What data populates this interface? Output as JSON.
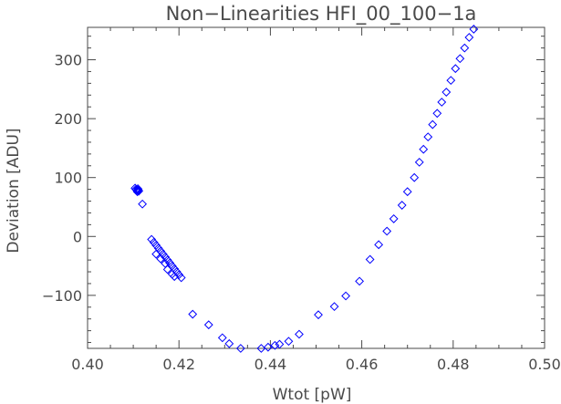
{
  "chart_data": {
    "type": "scatter",
    "title": "Non−Linearities HFI_00_100−1a",
    "xlabel": "Wtot [pW]",
    "ylabel": "Deviation [ADU]",
    "xlim": [
      0.4,
      0.5
    ],
    "ylim": [
      -190,
      355
    ],
    "xticks": [
      0.4,
      0.42,
      0.44,
      0.46,
      0.48,
      0.5
    ],
    "xtick_labels": [
      "0.40",
      "0.42",
      "0.44",
      "0.46",
      "0.48",
      "0.50"
    ],
    "yticks": [
      -100,
      0,
      100,
      200,
      300
    ],
    "ytick_labels": [
      "−100",
      "0",
      "100",
      "200",
      "300"
    ],
    "grid": false,
    "marker": "diamond-open",
    "color": "#0000ff",
    "series": [
      {
        "points": [
          [
            0.4104,
            82
          ],
          [
            0.4106,
            80
          ],
          [
            0.4108,
            78
          ],
          [
            0.4109,
            76
          ],
          [
            0.4111,
            79
          ],
          [
            0.4112,
            77
          ],
          [
            0.411,
            81
          ],
          [
            0.412,
            55
          ],
          [
            0.414,
            -5
          ],
          [
            0.4145,
            -10
          ],
          [
            0.415,
            -15
          ],
          [
            0.4155,
            -20
          ],
          [
            0.416,
            -25
          ],
          [
            0.4165,
            -30
          ],
          [
            0.417,
            -35
          ],
          [
            0.4175,
            -40
          ],
          [
            0.418,
            -45
          ],
          [
            0.4185,
            -50
          ],
          [
            0.419,
            -55
          ],
          [
            0.4195,
            -60
          ],
          [
            0.42,
            -65
          ],
          [
            0.4205,
            -70
          ],
          [
            0.415,
            -30
          ],
          [
            0.416,
            -38
          ],
          [
            0.417,
            -46
          ],
          [
            0.4175,
            -56
          ],
          [
            0.4185,
            -64
          ],
          [
            0.419,
            -68
          ],
          [
            0.423,
            -132
          ],
          [
            0.4265,
            -150
          ],
          [
            0.4295,
            -172
          ],
          [
            0.431,
            -182
          ],
          [
            0.4335,
            -190
          ],
          [
            0.436,
            -191
          ],
          [
            0.438,
            -190
          ],
          [
            0.4395,
            -188
          ],
          [
            0.441,
            -185
          ],
          [
            0.442,
            -183
          ],
          [
            0.444,
            -178
          ],
          [
            0.4463,
            -166
          ],
          [
            0.4505,
            -133
          ],
          [
            0.454,
            -119
          ],
          [
            0.4565,
            -101
          ],
          [
            0.4595,
            -76
          ],
          [
            0.4618,
            -39
          ],
          [
            0.4637,
            -14
          ],
          [
            0.4655,
            9
          ],
          [
            0.467,
            30
          ],
          [
            0.4688,
            53
          ],
          [
            0.47,
            76
          ],
          [
            0.4715,
            100
          ],
          [
            0.4726,
            126
          ],
          [
            0.4735,
            148
          ],
          [
            0.4745,
            169
          ],
          [
            0.4755,
            190
          ],
          [
            0.4765,
            209
          ],
          [
            0.4775,
            228
          ],
          [
            0.4785,
            245
          ],
          [
            0.4795,
            265
          ],
          [
            0.4805,
            285
          ],
          [
            0.4815,
            302
          ],
          [
            0.4825,
            320
          ],
          [
            0.4835,
            338
          ],
          [
            0.4845,
            352
          ]
        ]
      }
    ]
  }
}
